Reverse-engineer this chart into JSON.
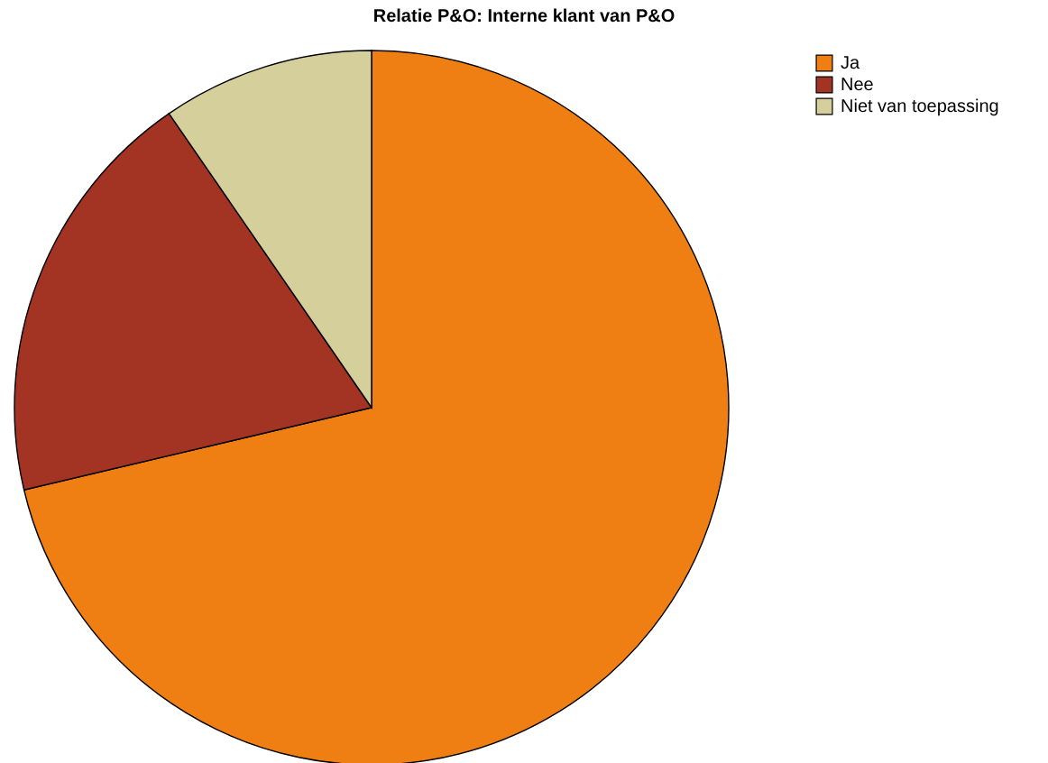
{
  "chart_data": {
    "type": "pie",
    "title": "Relatie P&O: Interne klant van P&O",
    "categories": [
      "Ja",
      "Nee",
      "Niet van toepassing"
    ],
    "values": [
      71.3,
      19.1,
      9.6
    ],
    "colors": [
      "#ef7f12",
      "#a33322",
      "#d5cf9b"
    ],
    "legend": "top right"
  }
}
